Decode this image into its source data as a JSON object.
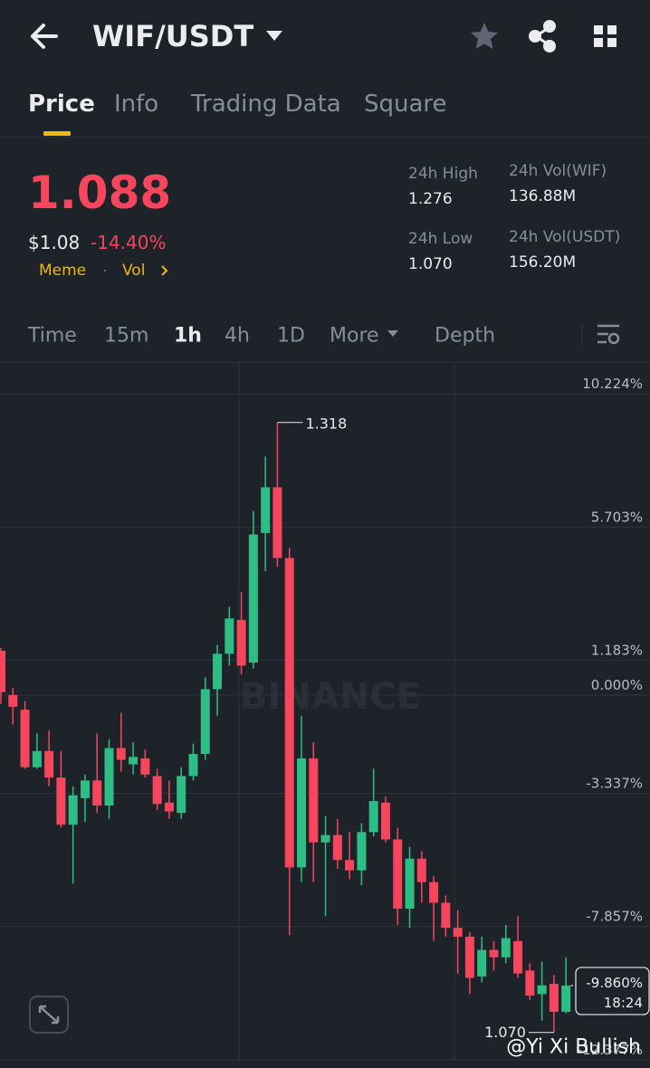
{
  "header": {
    "pair": "WIF/USDT"
  },
  "tabs": [
    "Price",
    "Info",
    "Trading Data",
    "Square"
  ],
  "price": {
    "last": "1.088",
    "usd": "$1.08",
    "change": "-14.40%",
    "tags": [
      "Meme",
      "Vol"
    ]
  },
  "stats": [
    {
      "label": "24h High",
      "value": "1.276"
    },
    {
      "label": "24h Vol(WIF)",
      "value": "136.88M"
    },
    {
      "label": "24h Low",
      "value": "1.070"
    },
    {
      "label": "24h Vol(USDT)",
      "value": "156.20M"
    }
  ],
  "timeframes": [
    "Time",
    "15m",
    "1h",
    "4h",
    "1D",
    "More",
    "Depth"
  ],
  "chart_data": {
    "type": "candlestick",
    "ylim": [
      -12.35,
      11.24
    ],
    "yticks": [
      {
        "value": 10.224,
        "label": "10.224%"
      },
      {
        "value": 5.703,
        "label": "5.703%"
      },
      {
        "value": 1.183,
        "label": "1.183%"
      },
      {
        "value": 0,
        "label": "0.000%"
      },
      {
        "value": -3.337,
        "label": "-3.337%"
      },
      {
        "value": -7.857,
        "label": "-7.857%"
      },
      {
        "value": -12.377,
        "label": "-12.377%"
      }
    ],
    "grid": true,
    "up_color": "#2ebd85",
    "down_color": "#f6465d",
    "candles": [
      {
        "open": 1.5,
        "high": 1.6,
        "low": -0.3,
        "close": 0.1
      },
      {
        "open": 0,
        "high": 0.25,
        "low": -1.0,
        "close": -0.4
      },
      {
        "open": -0.5,
        "high": -0.2,
        "low": -2.5,
        "close": -2.45
      },
      {
        "open": -2.45,
        "high": -1.3,
        "low": -2.5,
        "close": -1.9
      },
      {
        "open": -1.9,
        "high": -1.2,
        "low": -3.1,
        "close": -2.8
      },
      {
        "open": -2.8,
        "high": -1.9,
        "low": -4.5,
        "close": -4.4
      },
      {
        "open": -4.4,
        "high": -3.1,
        "low": -6.4,
        "close": -3.4
      },
      {
        "open": -3.5,
        "high": -2.7,
        "low": -4.3,
        "close": -2.9
      },
      {
        "open": -2.9,
        "high": -1.3,
        "low": -4.0,
        "close": -3.75
      },
      {
        "open": -3.75,
        "high": -1.5,
        "low": -4.2,
        "close": -1.8
      },
      {
        "open": -1.8,
        "high": -0.6,
        "low": -2.6,
        "close": -2.2
      },
      {
        "open": -2.35,
        "high": -1.6,
        "low": -2.7,
        "close": -2.1
      },
      {
        "open": -2.15,
        "high": -1.85,
        "low": -2.8,
        "close": -2.7
      },
      {
        "open": -2.75,
        "high": -2.5,
        "low": -3.9,
        "close": -3.7
      },
      {
        "open": -3.65,
        "high": -2.9,
        "low": -4.2,
        "close": -3.95
      },
      {
        "open": -4.0,
        "high": -2.45,
        "low": -4.2,
        "close": -2.75
      },
      {
        "open": -2.75,
        "high": -1.65,
        "low": -2.9,
        "close": -2.0
      },
      {
        "open": -2.0,
        "high": 0.6,
        "low": -2.2,
        "close": 0.2
      },
      {
        "open": 0.2,
        "high": 1.7,
        "low": -0.7,
        "close": 1.4
      },
      {
        "open": 1.4,
        "high": 3.0,
        "low": 1.0,
        "close": 2.6
      },
      {
        "open": 2.55,
        "high": 3.5,
        "low": 0.7,
        "close": 1.0
      },
      {
        "open": 1.1,
        "high": 6.25,
        "low": 0.9,
        "close": 5.45
      },
      {
        "open": 5.5,
        "high": 8.1,
        "low": 4.2,
        "close": 7.05
      },
      {
        "open": 7.05,
        "high": 9.25,
        "low": 4.35,
        "close": 4.65
      },
      {
        "open": 4.65,
        "high": 5.0,
        "low": -8.15,
        "close": -5.85
      },
      {
        "open": -5.85,
        "high": -0.7,
        "low": -6.35,
        "close": -2.15
      },
      {
        "open": -2.15,
        "high": -1.6,
        "low": -6.35,
        "close": -5.0
      },
      {
        "open": -5.0,
        "high": -4.1,
        "low": -7.5,
        "close": -4.75
      },
      {
        "open": -4.75,
        "high": -4.2,
        "low": -5.9,
        "close": -5.6
      },
      {
        "open": -5.6,
        "high": -4.65,
        "low": -6.25,
        "close": -5.95
      },
      {
        "open": -5.95,
        "high": -4.35,
        "low": -6.45,
        "close": -4.65
      },
      {
        "open": -4.65,
        "high": -2.5,
        "low": -4.8,
        "close": -3.6
      },
      {
        "open": -3.65,
        "high": -3.45,
        "low": -5.0,
        "close": -4.9
      },
      {
        "open": -4.9,
        "high": -4.5,
        "low": -7.8,
        "close": -7.25
      },
      {
        "open": -7.25,
        "high": -5.15,
        "low": -7.9,
        "close": -5.55
      },
      {
        "open": -5.55,
        "high": -5.3,
        "low": -7.05,
        "close": -6.35
      },
      {
        "open": -6.35,
        "high": -6.15,
        "low": -8.35,
        "close": -7.05
      },
      {
        "open": -7.05,
        "high": -6.8,
        "low": -8.2,
        "close": -7.9
      },
      {
        "open": -7.9,
        "high": -7.3,
        "low": -9.45,
        "close": -8.2
      },
      {
        "open": -8.2,
        "high": -8.05,
        "low": -10.15,
        "close": -9.6
      },
      {
        "open": -9.55,
        "high": -8.2,
        "low": -9.75,
        "close": -8.65
      },
      {
        "open": -8.65,
        "high": -8.35,
        "low": -9.35,
        "close": -8.9
      },
      {
        "open": -8.9,
        "high": -7.8,
        "low": -9.1,
        "close": -8.25
      },
      {
        "open": -8.35,
        "high": -7.5,
        "low": -9.6,
        "close": -9.45
      },
      {
        "open": -9.35,
        "high": -9.1,
        "low": -10.35,
        "close": -10.2
      },
      {
        "open": -10.15,
        "high": -9.05,
        "low": -11.05,
        "close": -9.85
      },
      {
        "open": -9.8,
        "high": -9.5,
        "low": -11.45,
        "close": -10.75
      },
      {
        "open": -10.75,
        "high": -8.9,
        "low": -10.8,
        "close": -9.86
      }
    ],
    "high_label": "1.318",
    "low_label": "1.070",
    "current": {
      "value": -9.86,
      "label": "-9.860%"
    },
    "countdown": "18:24",
    "watermark": "BINANCE"
  },
  "credit": "@Yi Xi Bullish"
}
